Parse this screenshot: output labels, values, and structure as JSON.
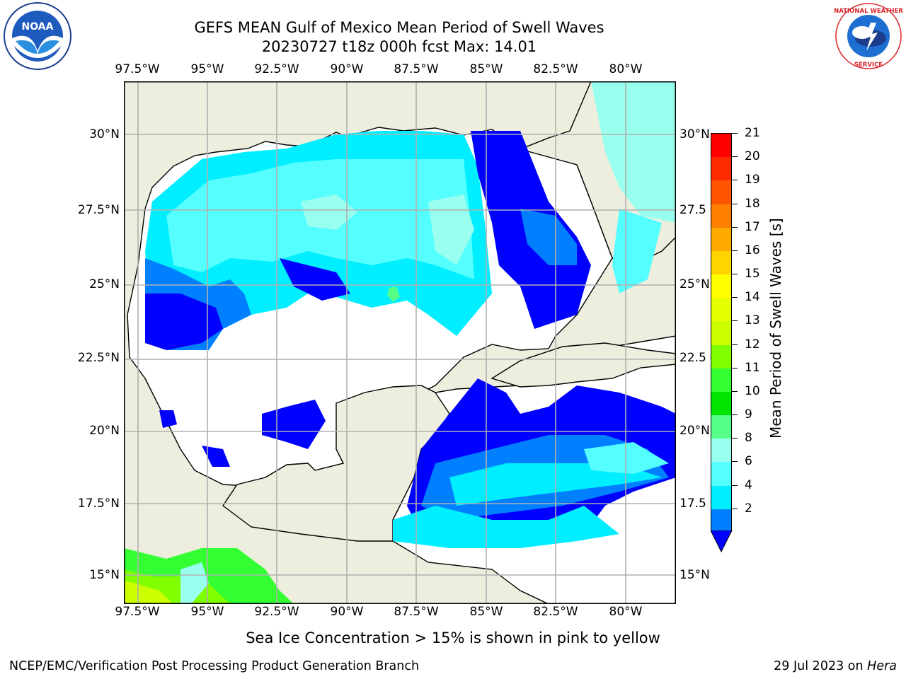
{
  "header": {
    "title": "GEFS MEAN Gulf of Mexico Mean Period of Swell Waves",
    "subtitle": "20230727 t18z 000h fcst   Max: 14.01"
  },
  "logos": {
    "left": {
      "name": "NOAA",
      "ring_text": "NATIONAL OCEANIC AND ATMOSPHERIC ADMINISTRATION · U.S. DEPARTMENT OF COMMERCE"
    },
    "right": {
      "name": "NATIONAL WEATHER SERVICE"
    }
  },
  "map": {
    "lon_ticks": [
      "97.5°W",
      "95°W",
      "92.5°W",
      "90°W",
      "87.5°W",
      "85°W",
      "82.5°W",
      "80°W"
    ],
    "lat_ticks_left": [
      "30°N",
      "27.5°N",
      "25°N",
      "22.5°N",
      "20°N",
      "17.5°N",
      "15°N"
    ],
    "lat_ticks_right": [
      "30°N",
      "27.5",
      "25°N",
      "22.5",
      "20°N",
      "17.5",
      "15°N"
    ],
    "colors": {
      "land": "#eeeede",
      "grid": "#b0b0b0",
      "water_nodata": "#ffffff"
    }
  },
  "colorbar": {
    "title": "Mean Period of Swell Waves [s]",
    "labels": [
      "21",
      "20",
      "19",
      "18",
      "17",
      "16",
      "15",
      "14",
      "13",
      "12",
      "11",
      "10",
      "9",
      "8",
      "6",
      "4",
      "2"
    ],
    "colors": [
      "#ff0000",
      "#ff2a00",
      "#ff5500",
      "#ff7f00",
      "#ffaa00",
      "#ffd400",
      "#ffff00",
      "#e6ff00",
      "#ccff00",
      "#7fff00",
      "#33ff33",
      "#00e400",
      "#55ff88",
      "#99ffee",
      "#55ffff",
      "#00eeff",
      "#0080ff"
    ],
    "under_color": "#0000ff"
  },
  "caption": "Sea Ice Concentration > 15% is shown in pink to yellow",
  "footer": {
    "left": "NCEP/EMC/Verification Post Processing Product Generation Branch",
    "date": "29 Jul 2023 on ",
    "machine": "Hera"
  }
}
